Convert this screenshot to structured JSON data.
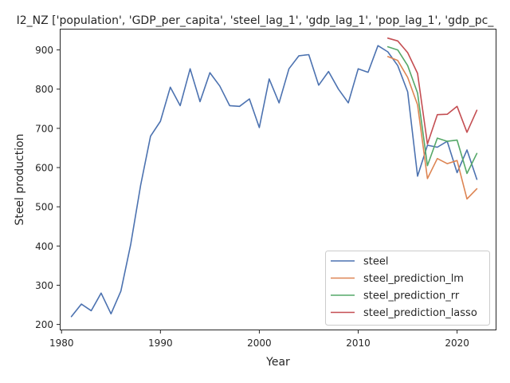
{
  "chart_data": {
    "type": "line",
    "title": "I2_NZ ['population', 'GDP_per_capita', 'steel_lag_1', 'gdp_lag_1', 'pop_lag_1', 'gdp_pc_",
    "xlabel": "Year",
    "ylabel": "Steel production",
    "xlim": [
      1979.9,
      2023.9
    ],
    "ylim": [
      187,
      952
    ],
    "xticks": [
      1980,
      1990,
      2000,
      2010,
      2020
    ],
    "yticks": [
      200,
      300,
      400,
      500,
      600,
      700,
      800,
      900
    ],
    "grid": false,
    "legend_position": "lower right",
    "series": [
      {
        "name": "steel",
        "color": "#4c72b0",
        "x": [
          1981,
          1982,
          1983,
          1984,
          1985,
          1986,
          1987,
          1988,
          1989,
          1990,
          1991,
          1992,
          1993,
          1994,
          1995,
          1996,
          1997,
          1998,
          1999,
          2000,
          2001,
          2002,
          2003,
          2004,
          2005,
          2006,
          2007,
          2008,
          2009,
          2010,
          2011,
          2012,
          2013,
          2014,
          2015,
          2016,
          2017,
          2018,
          2019,
          2020,
          2021,
          2022
        ],
        "y": [
          220,
          252,
          235,
          280,
          227,
          285,
          405,
          555,
          680,
          718,
          805,
          758,
          852,
          768,
          842,
          808,
          758,
          756,
          775,
          702,
          826,
          765,
          852,
          885,
          888,
          810,
          845,
          800,
          765,
          852,
          843,
          911,
          895,
          860,
          793,
          578,
          657,
          652,
          667,
          587,
          645,
          570
        ]
      },
      {
        "name": "steel_prediction_lm",
        "color": "#dd8452",
        "x": [
          2013,
          2014,
          2015,
          2016,
          2017,
          2018,
          2019,
          2020,
          2021,
          2022
        ],
        "y": [
          883,
          873,
          830,
          760,
          572,
          623,
          610,
          618,
          520,
          546
        ]
      },
      {
        "name": "steel_prediction_rr",
        "color": "#55a868",
        "x": [
          2013,
          2014,
          2015,
          2016,
          2017,
          2018,
          2019,
          2020,
          2021,
          2022
        ],
        "y": [
          908,
          900,
          860,
          790,
          605,
          675,
          667,
          670,
          585,
          636
        ]
      },
      {
        "name": "steel_prediction_lasso",
        "color": "#c44e52",
        "x": [
          2013,
          2014,
          2015,
          2016,
          2017,
          2018,
          2019,
          2020,
          2021,
          2022
        ],
        "y": [
          930,
          923,
          893,
          840,
          660,
          735,
          736,
          756,
          690,
          746
        ]
      }
    ]
  }
}
